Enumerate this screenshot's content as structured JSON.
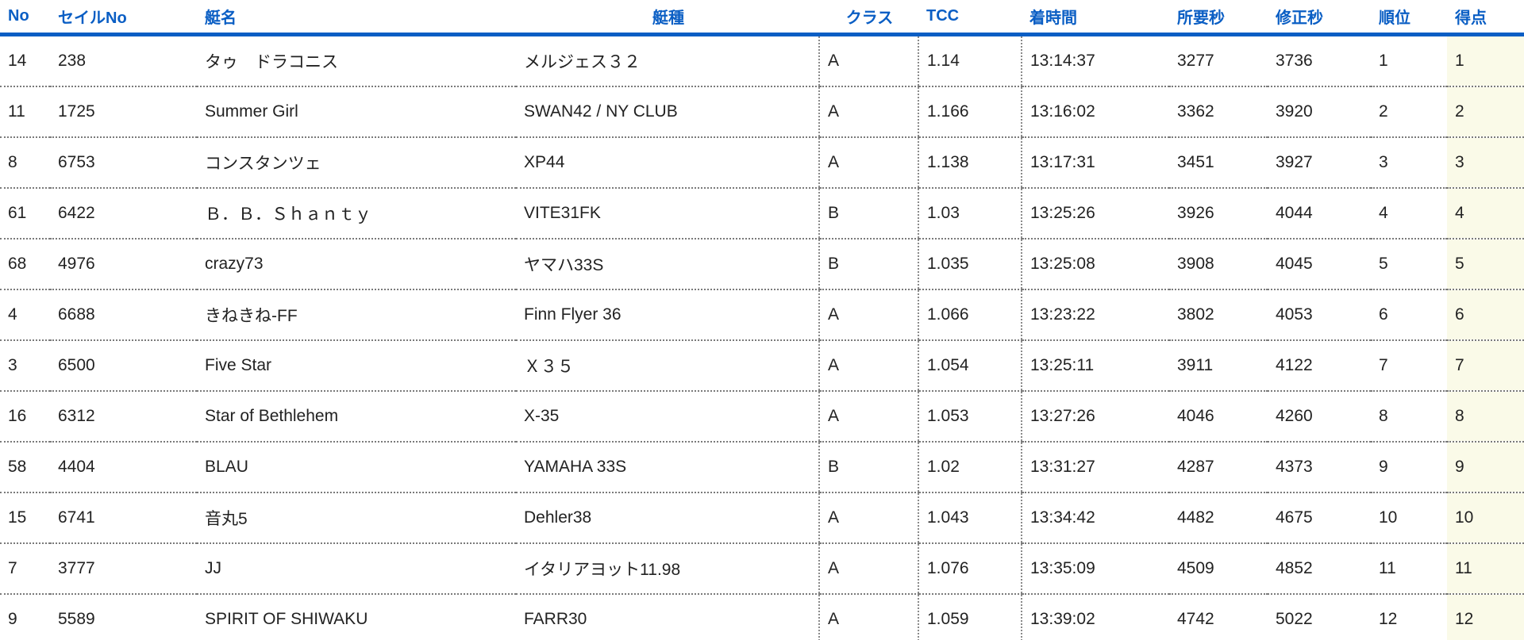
{
  "table": {
    "columns": [
      {
        "id": "no",
        "label": "No"
      },
      {
        "id": "sail_no",
        "label": "セイルNo"
      },
      {
        "id": "boat_name",
        "label": "艇名"
      },
      {
        "id": "boat_type",
        "label": "艇種"
      },
      {
        "id": "class",
        "label": "クラス"
      },
      {
        "id": "tcc",
        "label": "TCC"
      },
      {
        "id": "finish_time",
        "label": "着時間"
      },
      {
        "id": "elapsed_sec",
        "label": "所要秒"
      },
      {
        "id": "corrected_sec",
        "label": "修正秒"
      },
      {
        "id": "rank",
        "label": "順位"
      },
      {
        "id": "points",
        "label": "得点"
      }
    ],
    "rows": [
      [
        "14",
        "238",
        "タゥ　ドラコニス",
        "メルジェス３２",
        "A",
        "1.14",
        "13:14:37",
        "3277",
        "3736",
        "1",
        "1"
      ],
      [
        "11",
        "1725",
        "Summer Girl",
        "SWAN42 / NY CLUB",
        "A",
        "1.166",
        "13:16:02",
        "3362",
        "3920",
        "2",
        "2"
      ],
      [
        "8",
        "6753",
        "コンスタンツェ",
        "XP44",
        "A",
        "1.138",
        "13:17:31",
        "3451",
        "3927",
        "3",
        "3"
      ],
      [
        "61",
        "6422",
        "Ｂ．Ｂ．Ｓｈａｎｔｙ",
        "VITE31FK",
        "B",
        "1.03",
        "13:25:26",
        "3926",
        "4044",
        "4",
        "4"
      ],
      [
        "68",
        "4976",
        "crazy73",
        "ヤマハ33S",
        "B",
        "1.035",
        "13:25:08",
        "3908",
        "4045",
        "5",
        "5"
      ],
      [
        "4",
        "6688",
        "きねきね-FF",
        "Finn Flyer 36",
        "A",
        "1.066",
        "13:23:22",
        "3802",
        "4053",
        "6",
        "6"
      ],
      [
        "3",
        "6500",
        "Five Star",
        "Ｘ３５",
        "A",
        "1.054",
        "13:25:11",
        "3911",
        "4122",
        "7",
        "7"
      ],
      [
        "16",
        "6312",
        "Star of Bethlehem",
        "X-35",
        "A",
        "1.053",
        "13:27:26",
        "4046",
        "4260",
        "8",
        "8"
      ],
      [
        "58",
        "4404",
        "BLAU",
        "YAMAHA 33S",
        "B",
        "1.02",
        "13:31:27",
        "4287",
        "4373",
        "9",
        "9"
      ],
      [
        "15",
        "6741",
        "音丸5",
        "Dehler38",
        "A",
        "1.043",
        "13:34:42",
        "4482",
        "4675",
        "10",
        "10"
      ],
      [
        "7",
        "3777",
        "JJ",
        "イタリアヨット11.98",
        "A",
        "1.076",
        "13:35:09",
        "4509",
        "4852",
        "11",
        "11"
      ],
      [
        "9",
        "5589",
        "SPIRIT OF SHIWAKU",
        "FARR30",
        "A",
        "1.059",
        "13:39:02",
        "4742",
        "5022",
        "12",
        "12"
      ]
    ]
  },
  "colors": {
    "header_blue": "#0A5EC4",
    "points_column_bg": "#FAFAE8",
    "row_divider_gray": "#7A7A7A",
    "body_text": "#222222"
  }
}
